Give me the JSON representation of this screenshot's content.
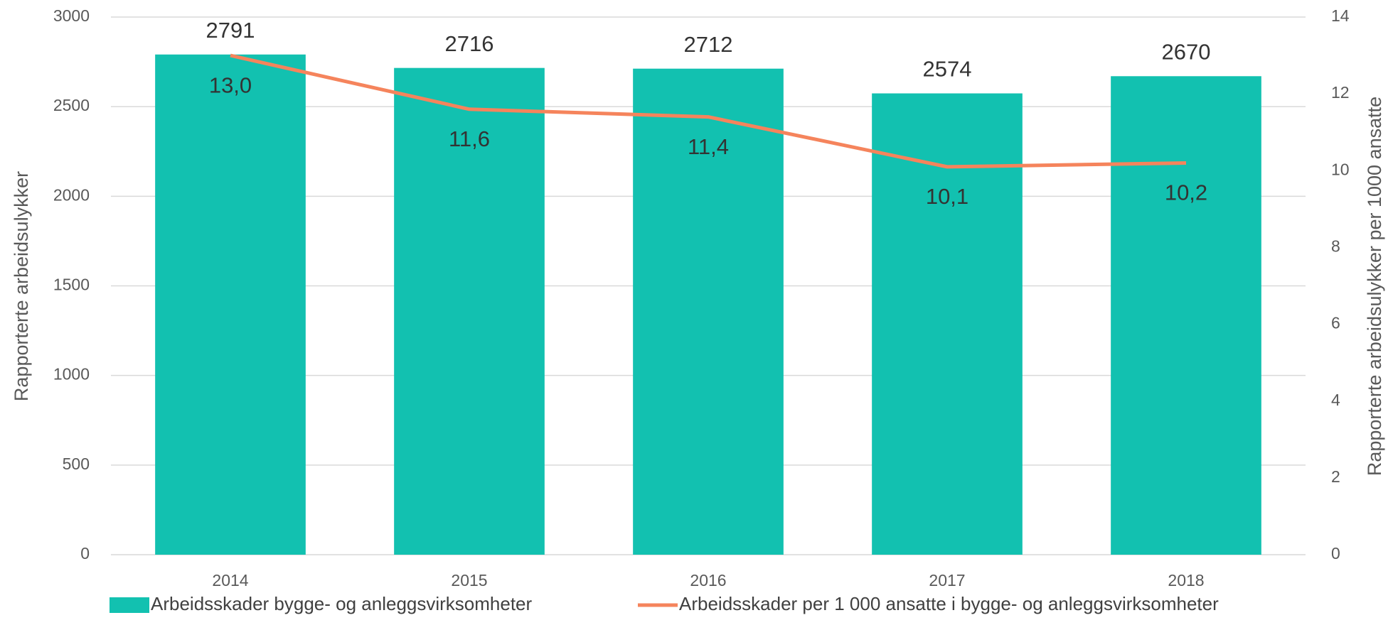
{
  "chart_data": {
    "type": "bar",
    "categories": [
      "2014",
      "2015",
      "2016",
      "2017",
      "2018"
    ],
    "series": [
      {
        "name": "Arbeidsskader bygge- og anleggsvirksomheter",
        "type": "bar",
        "color": "#12c1b0",
        "values": [
          2791,
          2716,
          2712,
          2574,
          2670
        ]
      },
      {
        "name": "Arbeidsskader per 1 000 ansatte i bygge- og anleggsvirksomheter",
        "type": "line",
        "axis": "y2",
        "color": "#f5845c",
        "values": [
          13.0,
          11.6,
          11.4,
          10.1,
          10.2
        ],
        "value_labels": [
          "13,0",
          "11,6",
          "11,4",
          "10,1",
          "10,2"
        ]
      }
    ],
    "ylabel": "Rapporterte arbeidsulykker",
    "y2label": "Rapporterte arbeidsulykker per 1000 ansatte",
    "ylim": [
      0,
      3000
    ],
    "yticks": [
      0,
      500,
      1000,
      1500,
      2000,
      2500,
      3000
    ],
    "y2lim": [
      0,
      14
    ],
    "y2ticks": [
      0,
      2,
      4,
      6,
      8,
      10,
      12,
      14
    ],
    "grid": true,
    "legend": "bottom"
  }
}
